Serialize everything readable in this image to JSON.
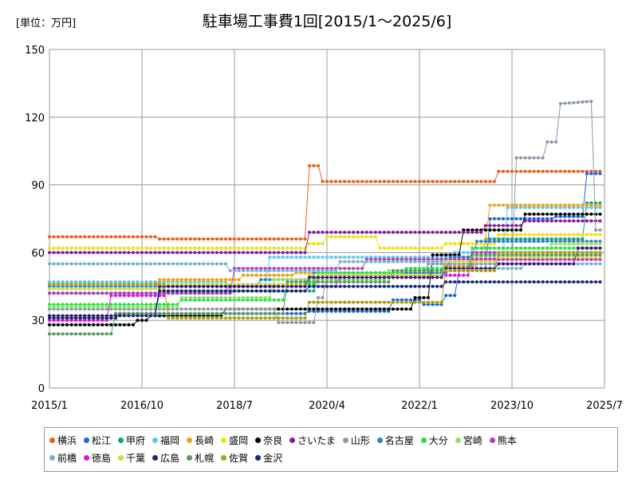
{
  "chart_data": {
    "type": "line",
    "title": "駐車場工事費1回[2015/1～2025/6]",
    "unit_label": "[単位：万円]",
    "xlabel": "",
    "ylabel": "",
    "x_range": [
      "2015/1",
      "2025/7"
    ],
    "x_ticks": [
      "2015/1",
      "2016/10",
      "2018/7",
      "2020/4",
      "2022/1",
      "2023/10",
      "2025/7"
    ],
    "ylim": [
      0,
      150
    ],
    "y_ticks": [
      0,
      30,
      60,
      90,
      120,
      150
    ],
    "grid": true,
    "legend_position": "bottom",
    "series": [
      {
        "name": "横浜",
        "color": "#e8601c",
        "points": [
          [
            "2015/1",
            67
          ],
          [
            "2017/1",
            67
          ],
          [
            "2017/2",
            66
          ],
          [
            "2019/11",
            66
          ],
          [
            "2019/12",
            98.5
          ],
          [
            "2020/2",
            98.5
          ],
          [
            "2020/3",
            91.5
          ],
          [
            "2023/6",
            91.5
          ],
          [
            "2023/7",
            96
          ],
          [
            "2025/6",
            96
          ]
        ]
      },
      {
        "name": "松江",
        "color": "#1a66e0",
        "points": [
          [
            "2015/1",
            31
          ],
          [
            "2016/4",
            31
          ],
          [
            "2016/5",
            33
          ],
          [
            "2019/11",
            33
          ],
          [
            "2019/12",
            34
          ],
          [
            "2021/6",
            34
          ],
          [
            "2021/7",
            39
          ],
          [
            "2022/1",
            39
          ],
          [
            "2022/2",
            37
          ],
          [
            "2022/6",
            37
          ],
          [
            "2022/7",
            41
          ],
          [
            "2022/9",
            41
          ],
          [
            "2022/10",
            52
          ],
          [
            "2023/4",
            52
          ],
          [
            "2023/5",
            75
          ],
          [
            "2024/7",
            75
          ],
          [
            "2024/8",
            76
          ],
          [
            "2025/2",
            76
          ],
          [
            "2025/3",
            95
          ],
          [
            "2025/6",
            95
          ]
        ]
      },
      {
        "name": "甲府",
        "color": "#16a085",
        "points": [
          [
            "2015/1",
            42
          ],
          [
            "2018/6",
            42
          ],
          [
            "2018/7",
            43
          ],
          [
            "2020/1",
            43
          ],
          [
            "2020/2",
            50
          ],
          [
            "2022/6",
            50
          ],
          [
            "2022/7",
            58
          ],
          [
            "2023/3",
            58
          ],
          [
            "2023/4",
            66
          ],
          [
            "2025/2",
            66
          ],
          [
            "2025/3",
            82
          ],
          [
            "2025/6",
            82
          ]
        ]
      },
      {
        "name": "福岡",
        "color": "#5ec8ee",
        "points": [
          [
            "2015/1",
            47
          ],
          [
            "2018/5",
            47
          ],
          [
            "2018/6",
            45
          ],
          [
            "2019/2",
            45
          ],
          [
            "2019/3",
            58
          ],
          [
            "2022/8",
            58
          ],
          [
            "2022/9",
            60
          ],
          [
            "2023/8",
            60
          ],
          [
            "2023/9",
            80
          ],
          [
            "2025/6",
            80
          ]
        ]
      },
      {
        "name": "長崎",
        "color": "#e8a418",
        "points": [
          [
            "2015/1",
            44
          ],
          [
            "2017/1",
            44
          ],
          [
            "2017/2",
            48
          ],
          [
            "2018/8",
            48
          ],
          [
            "2018/9",
            50
          ],
          [
            "2019/8",
            50
          ],
          [
            "2019/9",
            51
          ],
          [
            "2022/6",
            51
          ],
          [
            "2022/7",
            54
          ],
          [
            "2023/1",
            54
          ],
          [
            "2023/2",
            58
          ],
          [
            "2023/3",
            58
          ],
          [
            "2023/4",
            66
          ],
          [
            "2023/5",
            81
          ],
          [
            "2025/6",
            81
          ]
        ]
      },
      {
        "name": "盛岡",
        "color": "#f0e014",
        "points": [
          [
            "2015/1",
            62
          ],
          [
            "2019/11",
            62
          ],
          [
            "2019/12",
            64
          ],
          [
            "2020/3",
            64
          ],
          [
            "2020/4",
            67
          ],
          [
            "2021/3",
            67
          ],
          [
            "2021/4",
            62
          ],
          [
            "2022/6",
            62
          ],
          [
            "2022/7",
            64
          ],
          [
            "2023/6",
            64
          ],
          [
            "2023/7",
            68
          ],
          [
            "2025/6",
            68
          ]
        ]
      },
      {
        "name": "奈良",
        "color": "#000000",
        "points": [
          [
            "2015/1",
            28
          ],
          [
            "2016/8",
            28
          ],
          [
            "2016/9",
            30
          ],
          [
            "2016/11",
            30
          ],
          [
            "2016/12",
            32
          ],
          [
            "2018/4",
            32
          ],
          [
            "2018/5",
            35
          ],
          [
            "2021/11",
            35
          ],
          [
            "2021/12",
            40
          ],
          [
            "2022/3",
            40
          ],
          [
            "2022/4",
            59
          ],
          [
            "2022/10",
            59
          ],
          [
            "2022/11",
            70
          ],
          [
            "2023/12",
            70
          ],
          [
            "2024/1",
            77
          ],
          [
            "2025/6",
            77
          ]
        ]
      },
      {
        "name": "さいたま",
        "color": "#8b1aa0",
        "points": [
          [
            "2015/1",
            60
          ],
          [
            "2019/11",
            60
          ],
          [
            "2019/12",
            69
          ],
          [
            "2023/3",
            69
          ],
          [
            "2023/4",
            72
          ],
          [
            "2023/12",
            72
          ],
          [
            "2024/1",
            74
          ],
          [
            "2025/6",
            74
          ]
        ]
      },
      {
        "name": "山形",
        "color": "#8a98a6",
        "points": [
          [
            "2015/1",
            35
          ],
          [
            "2019/4",
            35
          ],
          [
            "2019/5",
            29
          ],
          [
            "2020/1",
            29
          ],
          [
            "2020/2",
            40
          ],
          [
            "2020/3",
            40
          ],
          [
            "2020/4",
            50
          ],
          [
            "2022/2",
            50
          ],
          [
            "2022/3",
            55
          ],
          [
            "2023/10",
            55
          ],
          [
            "2023/11",
            102
          ],
          [
            "2024/5",
            102
          ],
          [
            "2024/6",
            109
          ],
          [
            "2024/8",
            109
          ],
          [
            "2024/9",
            126
          ],
          [
            "2025/4",
            127
          ],
          [
            "2025/5",
            70
          ],
          [
            "2025/6",
            70
          ]
        ]
      },
      {
        "name": "名古屋",
        "color": "#2f80c8",
        "points": [
          [
            "2015/1",
            45
          ],
          [
            "2018/12",
            45
          ],
          [
            "2018/13",
            48
          ],
          [
            "2019/12",
            48
          ],
          [
            "2020/1",
            51
          ],
          [
            "2022/7",
            51
          ],
          [
            "2022/8",
            58
          ],
          [
            "2023/1",
            58
          ],
          [
            "2023/2",
            65
          ],
          [
            "2025/6",
            65
          ]
        ]
      },
      {
        "name": "大分",
        "color": "#27e04a",
        "points": [
          [
            "2015/1",
            37
          ],
          [
            "2017/6",
            37
          ],
          [
            "2017/7",
            39
          ],
          [
            "2019/6",
            39
          ],
          [
            "2019/7",
            46
          ],
          [
            "2020/1",
            46
          ],
          [
            "2020/2",
            51
          ],
          [
            "2021/9",
            51
          ],
          [
            "2021/10",
            53
          ],
          [
            "2022/12",
            53
          ],
          [
            "2023/1",
            62
          ],
          [
            "2025/6",
            62
          ]
        ]
      },
      {
        "name": "宮崎",
        "color": "#8ee06a",
        "points": [
          [
            "2015/1",
            36
          ],
          [
            "2017/6",
            36
          ],
          [
            "2017/7",
            40
          ],
          [
            "2019/3",
            40
          ],
          [
            "2019/4",
            48
          ],
          [
            "2021/5",
            48
          ],
          [
            "2021/6",
            52
          ],
          [
            "2022/12",
            52
          ],
          [
            "2023/1",
            58
          ],
          [
            "2024/6",
            58
          ],
          [
            "2024/7",
            64
          ],
          [
            "2025/6",
            64
          ]
        ]
      },
      {
        "name": "熊本",
        "color": "#b040b8",
        "points": [
          [
            "2015/1",
            42
          ],
          [
            "2018/6",
            42
          ],
          [
            "2018/7",
            53
          ],
          [
            "2020/12",
            53
          ],
          [
            "2021/1",
            57
          ],
          [
            "2022/12",
            57
          ],
          [
            "2023/1",
            60
          ],
          [
            "2025/6",
            60
          ]
        ]
      },
      {
        "name": "前橋",
        "color": "#78b0d0",
        "points": [
          [
            "2015/1",
            55
          ],
          [
            "2018/5",
            55
          ],
          [
            "2018/6",
            52
          ],
          [
            "2020/6",
            52
          ],
          [
            "2020/7",
            56
          ],
          [
            "2023/1",
            56
          ],
          [
            "2023/2",
            53
          ],
          [
            "2023/12",
            53
          ],
          [
            "2024/1",
            55
          ],
          [
            "2025/6",
            55
          ]
        ]
      },
      {
        "name": "徳島",
        "color": "#d81ad8",
        "points": [
          [
            "2015/1",
            30
          ],
          [
            "2016/2",
            30
          ],
          [
            "2016/3",
            41
          ],
          [
            "2017/3",
            41
          ],
          [
            "2017/4",
            43
          ],
          [
            "2018/5",
            43
          ],
          [
            "2018/6",
            45
          ],
          [
            "2020/6",
            45
          ],
          [
            "2020/7",
            50
          ],
          [
            "2022/12",
            50
          ],
          [
            "2023/1",
            57
          ],
          [
            "2025/6",
            57
          ]
        ]
      },
      {
        "name": "千葉",
        "color": "#c8e040",
        "points": [
          [
            "2015/1",
            44
          ],
          [
            "2017/3",
            44
          ],
          [
            "2017/4",
            46
          ],
          [
            "2019/11",
            46
          ],
          [
            "2019/12",
            50
          ],
          [
            "2022/6",
            50
          ],
          [
            "2022/7",
            56
          ],
          [
            "2023/6",
            56
          ],
          [
            "2023/7",
            58
          ],
          [
            "2025/6",
            58
          ]
        ]
      },
      {
        "name": "広島",
        "color": "#3a1a78",
        "points": [
          [
            "2015/1",
            31
          ],
          [
            "2016/4",
            31
          ],
          [
            "2016/5",
            33
          ],
          [
            "2017/1",
            33
          ],
          [
            "2017/2",
            45
          ],
          [
            "2019/11",
            45
          ],
          [
            "2019/12",
            49
          ],
          [
            "2022/6",
            49
          ],
          [
            "2022/7",
            53
          ],
          [
            "2023/6",
            53
          ],
          [
            "2023/7",
            55
          ],
          [
            "2024/12",
            55
          ],
          [
            "2025/1",
            62
          ],
          [
            "2025/6",
            62
          ]
        ]
      },
      {
        "name": "札幌",
        "color": "#5a9a5a",
        "points": [
          [
            "2015/1",
            24
          ],
          [
            "2016/3",
            24
          ],
          [
            "2016/4",
            33
          ],
          [
            "2019/6",
            33
          ],
          [
            "2019/7",
            47
          ],
          [
            "2021/6",
            47
          ],
          [
            "2021/7",
            52
          ],
          [
            "2022/12",
            52
          ],
          [
            "2023/1",
            59
          ],
          [
            "2025/6",
            59
          ]
        ]
      },
      {
        "name": "佐賀",
        "color": "#a8a018",
        "points": [
          [
            "2015/1",
            46
          ],
          [
            "2017/3",
            46
          ],
          [
            "2017/4",
            31
          ],
          [
            "2019/11",
            31
          ],
          [
            "2019/12",
            38
          ],
          [
            "2022/6",
            38
          ],
          [
            "2022/7",
            52
          ],
          [
            "2023/6",
            52
          ],
          [
            "2023/7",
            60
          ],
          [
            "2025/6",
            60
          ]
        ]
      },
      {
        "name": "金沢",
        "color": "#1a2a78",
        "points": [
          [
            "2015/1",
            32
          ],
          [
            "2017/1",
            32
          ],
          [
            "2017/2",
            43
          ],
          [
            "2019/11",
            43
          ],
          [
            "2019/12",
            45
          ],
          [
            "2022/6",
            45
          ],
          [
            "2022/7",
            47
          ],
          [
            "2025/6",
            47
          ]
        ]
      }
    ]
  }
}
